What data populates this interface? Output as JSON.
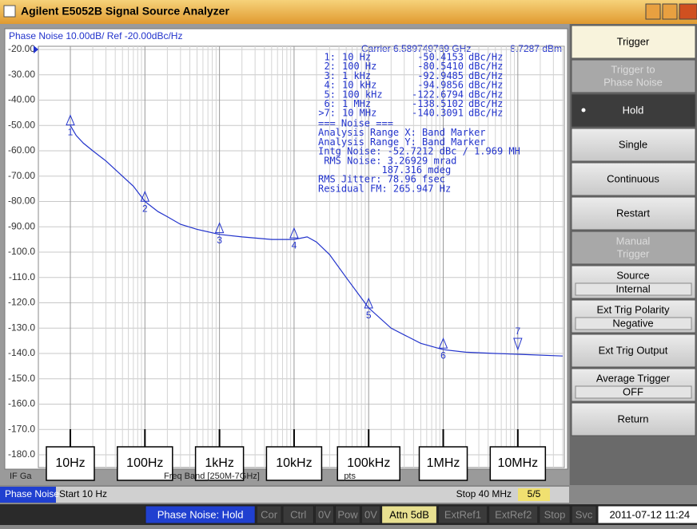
{
  "window": {
    "title": "Agilent E5052B Signal Source Analyzer"
  },
  "chart_data": {
    "type": "line",
    "title": "Phase Noise 10.00dB/ Ref -20.00dBc/Hz",
    "carrier": "Carrier 6.589749769 GHz",
    "carrier_power": "8.7287 dBm",
    "x_scale": "log",
    "grid": true,
    "xlim": [
      10,
      40000000
    ],
    "ylim": [
      -180,
      -20
    ],
    "xticks": [
      {
        "value": 10,
        "label": "10Hz"
      },
      {
        "value": 100,
        "label": "100Hz"
      },
      {
        "value": 1000,
        "label": "1kHz"
      },
      {
        "value": 10000,
        "label": "10kHz"
      },
      {
        "value": 100000,
        "label": "100kHz"
      },
      {
        "value": 1000000,
        "label": "1MHz"
      },
      {
        "value": 10000000,
        "label": "10MHz"
      }
    ],
    "yticks": [
      {
        "value": -20,
        "label": "-20.00"
      },
      {
        "value": -30,
        "label": "-30.00"
      },
      {
        "value": -40,
        "label": "-40.00"
      },
      {
        "value": -50,
        "label": "-50.00"
      },
      {
        "value": -60,
        "label": "-60.00"
      },
      {
        "value": -70,
        "label": "-70.00"
      },
      {
        "value": -80,
        "label": "-80.00"
      },
      {
        "value": -90,
        "label": "-90.00"
      },
      {
        "value": -100,
        "label": "-100.0"
      },
      {
        "value": -110,
        "label": "-110.0"
      },
      {
        "value": -120,
        "label": "-120.0"
      },
      {
        "value": -130,
        "label": "-130.0"
      },
      {
        "value": -140,
        "label": "-140.0"
      },
      {
        "value": -150,
        "label": "-150.0"
      },
      {
        "value": -160,
        "label": "-160.0"
      },
      {
        "value": -170,
        "label": "-170.0"
      },
      {
        "value": -180,
        "label": "-180.0"
      }
    ],
    "series": [
      {
        "color": "#2233cc",
        "x": [
          10,
          12,
          15,
          20,
          30,
          50,
          70,
          100,
          150,
          200,
          300,
          500,
          1000,
          2000,
          5000,
          10000,
          15000,
          20000,
          30000,
          50000,
          100000,
          200000,
          500000,
          1000000,
          2000000,
          5000000,
          10000000,
          40000000
        ],
        "values": [
          -50,
          -54,
          -57,
          -60,
          -64,
          -70,
          -74,
          -80,
          -84,
          -86,
          -89,
          -91,
          -93,
          -94,
          -95,
          -95,
          -94,
          -96,
          -101,
          -110,
          -122,
          -130,
          -136,
          -138.5,
          -139.5,
          -140,
          -140.3,
          -141
        ]
      }
    ],
    "markers": [
      {
        "id": "1",
        "row_label": "1:",
        "x": 10,
        "x_label": "10 Hz",
        "value": -50.4153,
        "unit": "dBc/Hz"
      },
      {
        "id": "2",
        "row_label": "2:",
        "x": 100,
        "x_label": "100 Hz",
        "value": -80.541,
        "value_label": "-80.5410",
        "unit": "dBc/Hz"
      },
      {
        "id": "3",
        "row_label": "3:",
        "x": 1000,
        "x_label": "1 kHz",
        "value": -92.9485,
        "unit": "dBc/Hz"
      },
      {
        "id": "4",
        "row_label": "4:",
        "x": 10000,
        "x_label": "10 kHz",
        "value": -94.9856,
        "unit": "dBc/Hz"
      },
      {
        "id": "5",
        "row_label": "5:",
        "x": 100000,
        "x_label": "100 kHz",
        "value": -122.6794,
        "unit": "dBc/Hz"
      },
      {
        "id": "6",
        "row_label": "6:",
        "x": 1000000,
        "x_label": "1 MHz",
        "value": -138.5102,
        "unit": "dBc/Hz"
      },
      {
        "id": "7",
        "row_label": ">7:",
        "x": 10000000,
        "x_label": "10 MHz",
        "value": -140.3091,
        "unit": "dBc/Hz"
      }
    ],
    "annotations": [
      "=== Noise ===",
      "Analysis Range X: Band Marker",
      "Analysis Range Y: Band Marker",
      "Intg Noise: -52.7212 dBc / 1.969 MH",
      " RMS Noise: 3.26929 mrad",
      "           187.316 mdeg",
      "RMS Jitter: 78.96 fsec",
      "Residual FM: 265.947 Hz"
    ]
  },
  "softkeys": [
    {
      "lines": [
        "Trigger"
      ],
      "state": "header"
    },
    {
      "lines": [
        "Trigger to",
        "Phase Noise"
      ],
      "state": "disabled"
    },
    {
      "lines": [
        "Hold"
      ],
      "state": "selected"
    },
    {
      "lines": [
        "Single"
      ],
      "state": "normal"
    },
    {
      "lines": [
        "Continuous"
      ],
      "state": "normal"
    },
    {
      "lines": [
        "Restart"
      ],
      "state": "normal"
    },
    {
      "lines": [
        "Manual",
        "Trigger"
      ],
      "state": "disabled"
    },
    {
      "lines": [
        "Source"
      ],
      "setting": "Internal",
      "state": "normal"
    },
    {
      "lines": [
        "Ext Trig Polarity"
      ],
      "setting": "Negative",
      "state": "normal"
    },
    {
      "lines": [
        "Ext Trig Output"
      ],
      "state": "normal"
    },
    {
      "lines": [
        "Average Trigger"
      ],
      "setting": "OFF",
      "state": "normal"
    },
    {
      "lines": [
        "Return"
      ],
      "state": "normal"
    }
  ],
  "info_row": [
    "IF Ga",
    "Freq Band [250M-7GHz]",
    "pts"
  ],
  "channel_bar": {
    "mode": "Phase Noise",
    "start": "Start 10 Hz",
    "stop": "Stop 40 MHz",
    "page": "5/5"
  },
  "status": [
    {
      "text": "Phase Noise: Hold",
      "state": "active"
    },
    {
      "text": "Cor",
      "state": "off"
    },
    {
      "text": "Ctrl",
      "state": "off"
    },
    {
      "text": "0V",
      "state": "off"
    },
    {
      "text": "Pow",
      "state": "off"
    },
    {
      "text": "0V",
      "state": "off"
    },
    {
      "text": "Attn 5dB",
      "state": "on"
    },
    {
      "text": "ExtRef1",
      "state": "off"
    },
    {
      "text": "ExtRef2",
      "state": "off"
    },
    {
      "text": "Stop",
      "state": "off"
    },
    {
      "text": "Svc",
      "state": "off"
    },
    {
      "text": "2011-07-12 11:24",
      "state": "clock"
    }
  ]
}
